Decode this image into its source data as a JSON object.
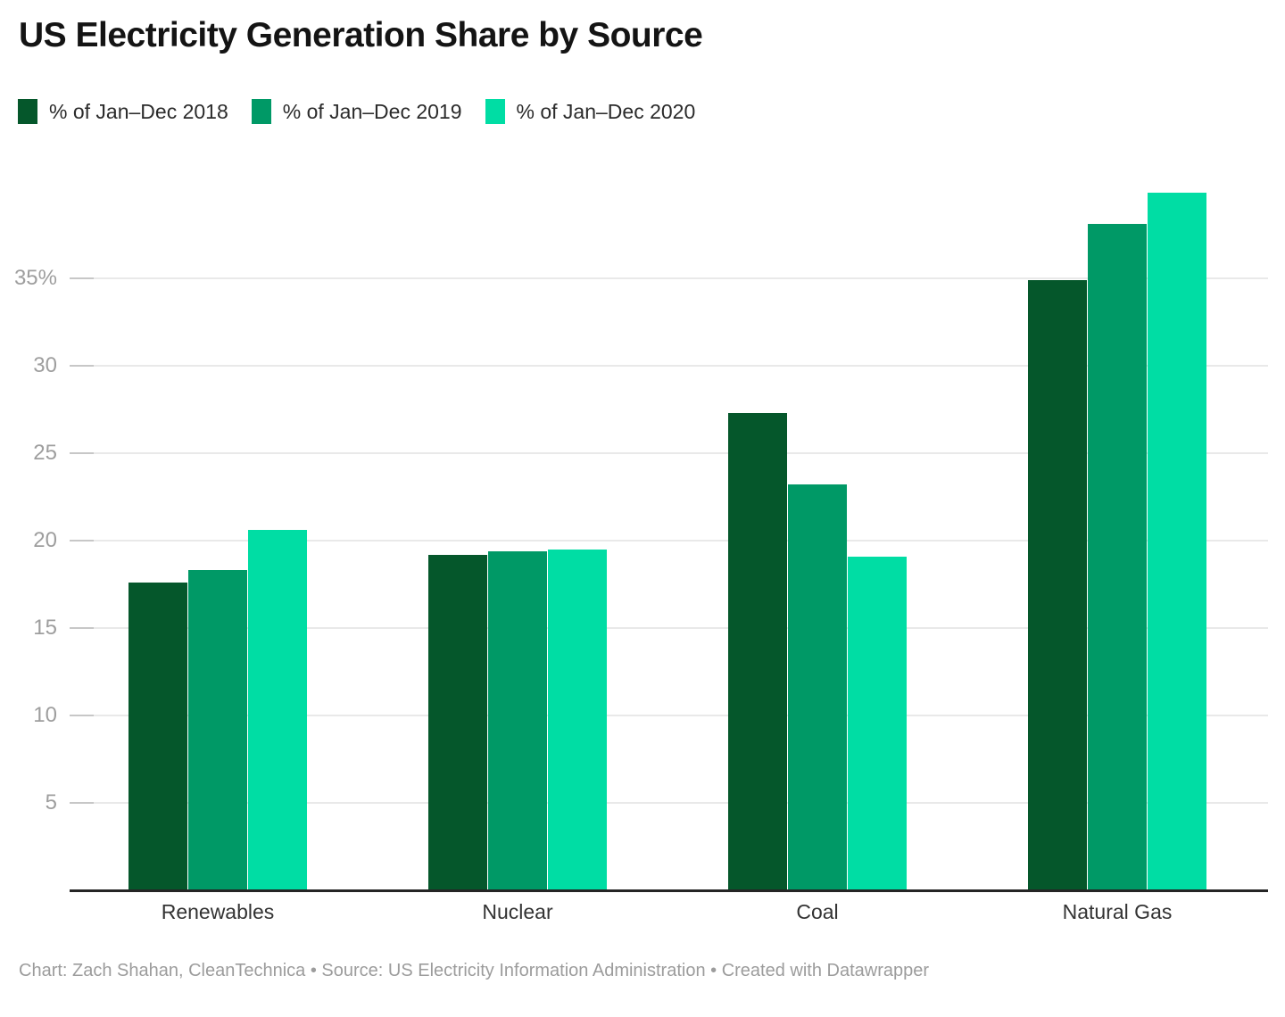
{
  "title": "US Electricity Generation Share by Source",
  "footer": "Chart: Zach Shahan, CleanTechnica • Source: US Electricity Information Administration • Created with Datawrapper",
  "legend": [
    {
      "label": "% of Jan–Dec 2018",
      "color": "#05572b"
    },
    {
      "label": "% of Jan–Dec 2019",
      "color": "#009966"
    },
    {
      "label": "% of Jan–Dec 2020",
      "color": "#00dda4"
    }
  ],
  "chart_data": {
    "type": "bar",
    "title": "US Electricity Generation Share by Source",
    "categories": [
      "Renewables",
      "Nuclear",
      "Coal",
      "Natural Gas"
    ],
    "series": [
      {
        "name": "% of Jan–Dec 2018",
        "year": "2018",
        "color": "#05572b",
        "values": [
          17.6,
          19.2,
          27.3,
          34.9
        ]
      },
      {
        "name": "% of Jan–Dec 2019",
        "year": "2019",
        "color": "#009966",
        "values": [
          18.3,
          19.4,
          23.2,
          38.1
        ]
      },
      {
        "name": "% of Jan–Dec 2020",
        "year": "2020",
        "color": "#00dda4",
        "values": [
          20.6,
          19.5,
          19.1,
          39.9
        ]
      }
    ],
    "xlabel": "",
    "ylabel": "",
    "ylim": [
      0,
      41.3
    ],
    "yticks": [
      {
        "value": 5,
        "label": "5"
      },
      {
        "value": 10,
        "label": "10"
      },
      {
        "value": 15,
        "label": "15"
      },
      {
        "value": 20,
        "label": "20"
      },
      {
        "value": 25,
        "label": "25"
      },
      {
        "value": 30,
        "label": "30"
      },
      {
        "value": 35,
        "label": "35%"
      }
    ],
    "grid": "horizontal",
    "legend_position": "top-left"
  },
  "colors": {
    "background": "#ffffff",
    "grid": "#e9e9e9",
    "grid_tick": "#c7c7c7",
    "axis_line": "#252525",
    "title_text": "#141414",
    "legend_text": "#2b2b2b",
    "ytick_text": "#9e9e9e",
    "category_text": "#333333",
    "footer_text": "#9c9c9c"
  }
}
